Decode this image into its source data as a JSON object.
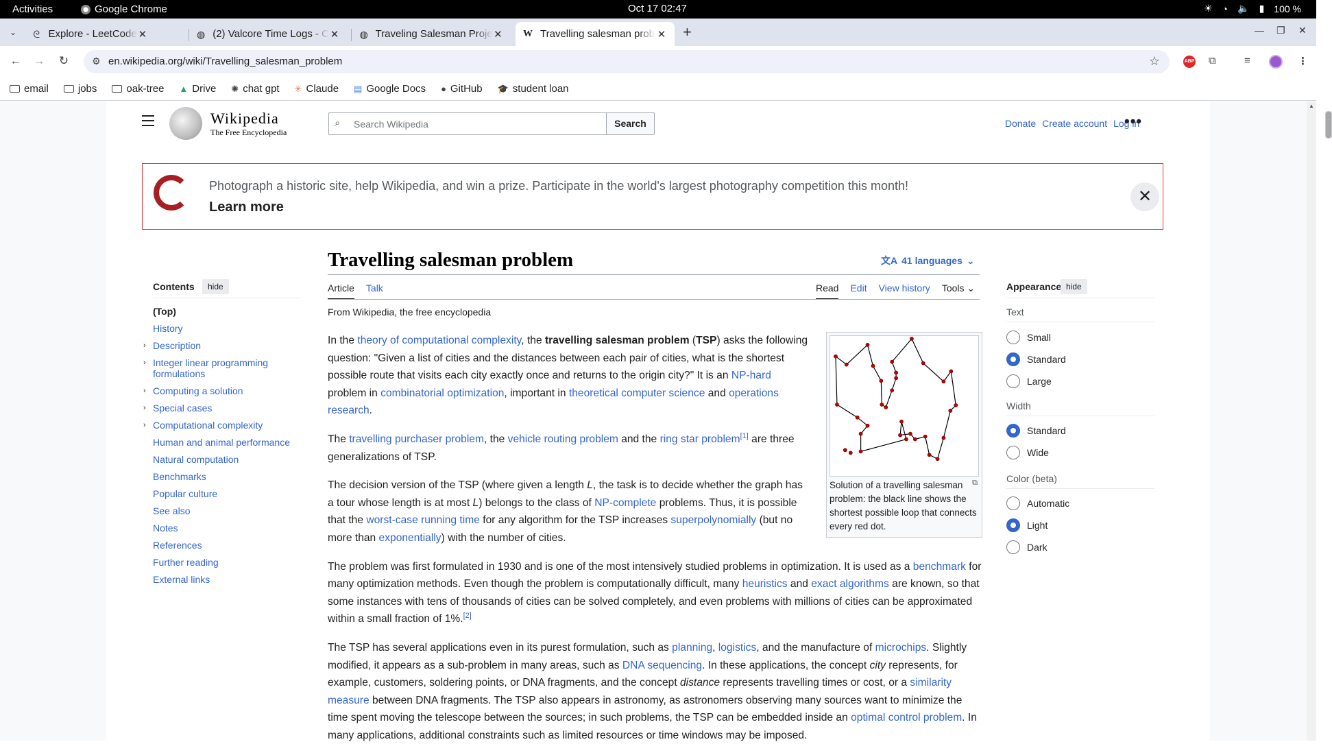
{
  "os": {
    "activities": "Activities",
    "app": "Google Chrome",
    "clock": "Oct 17  02:47",
    "battery": "100 %"
  },
  "tabs": [
    {
      "label": "Explore - LeetCode",
      "icon": "leetcode-icon"
    },
    {
      "label": "(2) Valcore Time Logs - C",
      "icon": "globe-icon"
    },
    {
      "label": "Traveling Salesman Proje",
      "icon": "globe-icon"
    },
    {
      "label": "Travelling salesman prob",
      "icon": "wikipedia-icon"
    }
  ],
  "url": "en.wikipedia.org/wiki/Travelling_salesman_problem",
  "bookmarks": [
    "email",
    "jobs",
    "oak-tree",
    "Drive",
    "chat gpt",
    "Claude",
    "Google Docs",
    "GitHub",
    "student loan"
  ],
  "wiki": {
    "wordmark": "Wikipedia",
    "tagline": "The Free Encyclopedia",
    "search_placeholder": "Search Wikipedia",
    "search_button": "Search",
    "donate": "Donate",
    "create_account": "Create account",
    "login": "Log in"
  },
  "banner": {
    "message": "Photograph a historic site, help Wikipedia, and win a prize. Participate in the world's largest photography competition this month!",
    "learn_more": "Learn more"
  },
  "toc": {
    "title": "Contents",
    "hide": "hide",
    "items": [
      {
        "label": "(Top)",
        "expandable": false
      },
      {
        "label": "History",
        "expandable": false
      },
      {
        "label": "Description",
        "expandable": true
      },
      {
        "label": "Integer linear programming formulations",
        "expandable": true
      },
      {
        "label": "Computing a solution",
        "expandable": true
      },
      {
        "label": "Special cases",
        "expandable": true
      },
      {
        "label": "Computational complexity",
        "expandable": true
      },
      {
        "label": "Human and animal performance",
        "expandable": false
      },
      {
        "label": "Natural computation",
        "expandable": false
      },
      {
        "label": "Benchmarks",
        "expandable": false
      },
      {
        "label": "Popular culture",
        "expandable": false
      },
      {
        "label": "See also",
        "expandable": false
      },
      {
        "label": "Notes",
        "expandable": false
      },
      {
        "label": "References",
        "expandable": false
      },
      {
        "label": "Further reading",
        "expandable": false
      },
      {
        "label": "External links",
        "expandable": false
      }
    ]
  },
  "article": {
    "title": "Travelling salesman problem",
    "languages": "41 languages",
    "tab_article": "Article",
    "tab_talk": "Talk",
    "tab_read": "Read",
    "tab_edit": "Edit",
    "tab_history": "View history",
    "tab_tools": "Tools",
    "from": "From Wikipedia, the free encyclopedia",
    "figure_caption": "Solution of a travelling salesman problem: the black line shows the shortest possible loop that connects every red dot.",
    "paragraphs": [
      [
        {
          "t": "In the "
        },
        {
          "t": "theory of computational complexity",
          "l": 1
        },
        {
          "t": ", the "
        },
        {
          "t": "travelling salesman problem",
          "b": 1
        },
        {
          "t": " ("
        },
        {
          "t": "TSP",
          "b": 1
        },
        {
          "t": ") asks the following question: \"Given a list of cities and the distances between each pair of cities, what is the shortest possible route that visits each city exactly once and returns to the origin city?\" It is an "
        },
        {
          "t": "NP-hard",
          "l": 1
        },
        {
          "t": " problem in "
        },
        {
          "t": "combinatorial optimization",
          "l": 1
        },
        {
          "t": ", important in "
        },
        {
          "t": "theoretical computer science",
          "l": 1
        },
        {
          "t": " and "
        },
        {
          "t": "operations research",
          "l": 1
        },
        {
          "t": "."
        }
      ],
      [
        {
          "t": "The "
        },
        {
          "t": "travelling purchaser problem",
          "l": 1
        },
        {
          "t": ", the "
        },
        {
          "t": "vehicle routing problem",
          "l": 1
        },
        {
          "t": " and the "
        },
        {
          "t": "ring star problem",
          "l": 1
        },
        {
          "t": "[1]",
          "s": 1
        },
        {
          "t": " are three generalizations of TSP."
        }
      ],
      [
        {
          "t": "The decision version of the TSP (where given a length "
        },
        {
          "t": "L",
          "i": 1
        },
        {
          "t": ", the task is to decide whether the graph has a tour whose length is at most "
        },
        {
          "t": "L",
          "i": 1
        },
        {
          "t": ") belongs to the class of "
        },
        {
          "t": "NP-complete",
          "l": 1
        },
        {
          "t": " problems. Thus, it is possible that the "
        },
        {
          "t": "worst-case running time",
          "l": 1
        },
        {
          "t": " for any algorithm for the TSP increases "
        },
        {
          "t": "superpolynomially",
          "l": 1
        },
        {
          "t": " (but no more than "
        },
        {
          "t": "exponentially",
          "l": 1
        },
        {
          "t": ") with the number of cities."
        }
      ],
      [
        {
          "t": "The problem was first formulated in 1930 and is one of the most intensively studied problems in optimization. It is used as a "
        },
        {
          "t": "benchmark",
          "l": 1
        },
        {
          "t": " for many optimization methods. Even though the problem is computationally difficult, many "
        },
        {
          "t": "heuristics",
          "l": 1
        },
        {
          "t": " and "
        },
        {
          "t": "exact algorithms",
          "l": 1
        },
        {
          "t": " are known, so that some instances with tens of thousands of cities can be solved completely, and even problems with millions of cities can be approximated within a small fraction of 1%."
        },
        {
          "t": "[2]",
          "s": 1
        }
      ],
      [
        {
          "t": "The TSP has several applications even in its purest formulation, such as "
        },
        {
          "t": "planning",
          "l": 1
        },
        {
          "t": ", "
        },
        {
          "t": "logistics",
          "l": 1
        },
        {
          "t": ", and the manufacture of "
        },
        {
          "t": "microchips",
          "l": 1
        },
        {
          "t": ". Slightly modified, it appears as a sub-problem in many areas, such as "
        },
        {
          "t": "DNA sequencing",
          "l": 1
        },
        {
          "t": ". In these applications, the concept "
        },
        {
          "t": "city",
          "i": 1
        },
        {
          "t": " represents, for example, customers, soldering points, or DNA fragments, and the concept "
        },
        {
          "t": "distance",
          "i": 1
        },
        {
          "t": " represents travelling times or cost, or a "
        },
        {
          "t": "similarity measure",
          "l": 1
        },
        {
          "t": " between DNA fragments. The TSP also appears in astronomy, as astronomers observing many sources want to minimize the time spent moving the telescope between the sources; in such problems, the TSP can be embedded inside an "
        },
        {
          "t": "optimal control problem",
          "l": 1
        },
        {
          "t": ". In many applications, additional constraints such as limited resources or time windows may be imposed."
        }
      ]
    ]
  },
  "appearance": {
    "title": "Appearance",
    "hide": "hide",
    "text_label": "Text",
    "text_options": [
      "Small",
      "Standard",
      "Large"
    ],
    "text_selected": "Standard",
    "width_label": "Width",
    "width_options": [
      "Standard",
      "Wide"
    ],
    "width_selected": "Standard",
    "color_label": "Color (beta)",
    "color_options": [
      "Automatic",
      "Light",
      "Dark"
    ],
    "color_selected": "Light"
  }
}
